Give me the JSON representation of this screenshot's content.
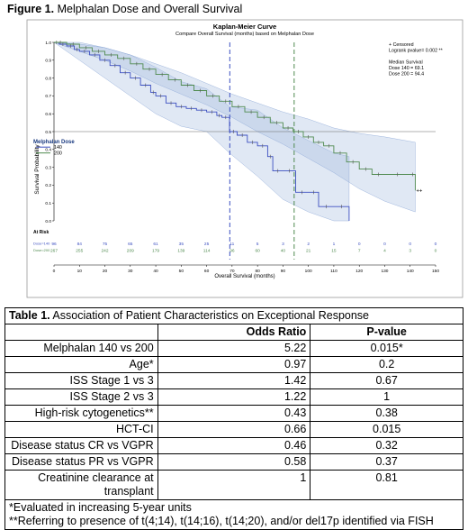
{
  "figure_heading": {
    "label": "Figure 1.",
    "title": "Melphalan Dose and Overall Survival"
  },
  "chart_data": {
    "type": "line",
    "title": "Kaplan-Meier Curve",
    "subtitle": "Compare Overall Survival (months) based on Melphalan Dose",
    "xlabel": "Overall Survival (months)",
    "ylabel": "Survival Probability",
    "xlim": [
      0,
      150
    ],
    "ylim": [
      0,
      1
    ],
    "x_ticks": [
      0,
      10,
      20,
      30,
      40,
      50,
      60,
      70,
      80,
      90,
      100,
      110,
      120,
      130,
      140,
      150
    ],
    "y_ticks": [
      0.0,
      0.1,
      0.2,
      0.3,
      0.4,
      0.5,
      0.6,
      0.7,
      0.8,
      0.9,
      1.0
    ],
    "x_tick_labels": [
      "0",
      "10",
      "20",
      "30",
      "40",
      "50",
      "60",
      "70",
      "80",
      "90",
      "100",
      "110",
      "120",
      "130",
      "140",
      "150"
    ],
    "y_tick_labels": [
      "0.0",
      "0.1",
      "0.2",
      "0.3",
      "0.4",
      "0.5",
      "0.6",
      "0.7",
      "0.8",
      "0.9",
      "1.0"
    ],
    "reference_line_y": 0.5,
    "median_lines_x": [
      69.1,
      94.4
    ],
    "legend_title": "Melphalan Dose",
    "legend_placement": "left",
    "series": [
      {
        "name": "140",
        "color": "#3c4fc0",
        "x": [
          0,
          2,
          5,
          8,
          10,
          14,
          18,
          22,
          26,
          30,
          34,
          38,
          40,
          44,
          48,
          52,
          56,
          60,
          64,
          66,
          69,
          72,
          76,
          80,
          84,
          86,
          90,
          95,
          100,
          104,
          110,
          116
        ],
        "y": [
          1.0,
          0.99,
          0.98,
          0.96,
          0.95,
          0.93,
          0.9,
          0.87,
          0.83,
          0.8,
          0.76,
          0.72,
          0.7,
          0.66,
          0.64,
          0.63,
          0.62,
          0.61,
          0.59,
          0.58,
          0.5,
          0.48,
          0.44,
          0.42,
          0.36,
          0.28,
          0.28,
          0.16,
          0.16,
          0.08,
          0.08,
          0.0
        ]
      },
      {
        "name": "200",
        "color": "#4f8a4f",
        "x": [
          0,
          5,
          10,
          15,
          20,
          25,
          30,
          35,
          40,
          45,
          50,
          55,
          60,
          65,
          70,
          75,
          80,
          85,
          90,
          94,
          98,
          102,
          106,
          110,
          115,
          120,
          125,
          130,
          140,
          142
        ],
        "y": [
          1.0,
          0.99,
          0.97,
          0.95,
          0.93,
          0.91,
          0.88,
          0.85,
          0.82,
          0.79,
          0.76,
          0.73,
          0.7,
          0.67,
          0.64,
          0.61,
          0.58,
          0.55,
          0.52,
          0.5,
          0.47,
          0.44,
          0.42,
          0.38,
          0.33,
          0.29,
          0.26,
          0.26,
          0.26,
          0.17
        ]
      }
    ],
    "confidence_bands": [
      {
        "series": "140",
        "x": [
          0,
          10,
          20,
          30,
          40,
          50,
          60,
          69,
          80,
          90,
          100,
          110,
          116
        ],
        "lower": [
          1.0,
          0.9,
          0.8,
          0.7,
          0.6,
          0.53,
          0.5,
          0.38,
          0.25,
          0.12,
          0.05,
          0.0,
          0.0
        ],
        "upper": [
          1.0,
          1.0,
          0.97,
          0.93,
          0.86,
          0.78,
          0.74,
          0.64,
          0.62,
          0.52,
          0.45,
          0.38,
          0.36
        ]
      },
      {
        "series": "200",
        "x": [
          0,
          10,
          20,
          30,
          40,
          50,
          60,
          70,
          80,
          90,
          100,
          110,
          120,
          130,
          142
        ],
        "lower": [
          1.0,
          0.95,
          0.9,
          0.84,
          0.77,
          0.71,
          0.65,
          0.58,
          0.5,
          0.43,
          0.35,
          0.27,
          0.18,
          0.11,
          0.05
        ],
        "upper": [
          1.0,
          0.99,
          0.97,
          0.93,
          0.88,
          0.83,
          0.77,
          0.71,
          0.66,
          0.61,
          0.57,
          0.52,
          0.49,
          0.47,
          0.44
        ]
      }
    ],
    "inset_text": [
      "+ Censored",
      "Logrank pvalue= 0.002 **",
      "",
      "Median Survival",
      "Dose 140 = 69.1",
      "Dose 200 = 94.4"
    ],
    "at_risk": {
      "label": "At Risk",
      "rows": [
        {
          "label": "Dose=140",
          "color": "#3c4fc0",
          "values": [
            "96",
            "84",
            "75",
            "65",
            "61",
            "35",
            "25",
            "11",
            "5",
            "3",
            "2",
            "1",
            "0",
            "0",
            "0",
            "0"
          ]
        },
        {
          "label": "Dose=200",
          "color": "#4f8a4f",
          "values": [
            "267",
            "255",
            "242",
            "209",
            "179",
            "139",
            "114",
            "96",
            "60",
            "40",
            "21",
            "15",
            "7",
            "4",
            "3",
            "0"
          ]
        }
      ]
    }
  },
  "table": {
    "caption_label": "Table 1.",
    "caption_text": "Association of Patient Characteristics on Exceptional Response",
    "headers": [
      "",
      "Odds Ratio",
      "P-value"
    ],
    "rows": [
      [
        "Melphalan 140 vs 200",
        "5.22",
        "0.015*"
      ],
      [
        "Age*",
        "0.97",
        "0.2"
      ],
      [
        "ISS Stage 1 vs 3",
        "1.42",
        "0.67"
      ],
      [
        "ISS Stage 2 vs 3",
        "1.22",
        "1"
      ],
      [
        "High-risk cytogenetics**",
        "0.43",
        "0.38"
      ],
      [
        "HCT-CI",
        "0.66",
        "0.015"
      ],
      [
        "Disease status CR vs VGPR",
        "0.46",
        "0.32"
      ],
      [
        "Disease status PR vs VGPR",
        "0.58",
        "0.37"
      ],
      [
        "Creatinine clearance at transplant",
        "1",
        "0.81"
      ]
    ],
    "notes": [
      "*Evaluated in increasing 5-year units",
      "**Referring to presence of t(4;14), t(14;16), t(14;20), and/or del17p identified via FISH"
    ]
  }
}
